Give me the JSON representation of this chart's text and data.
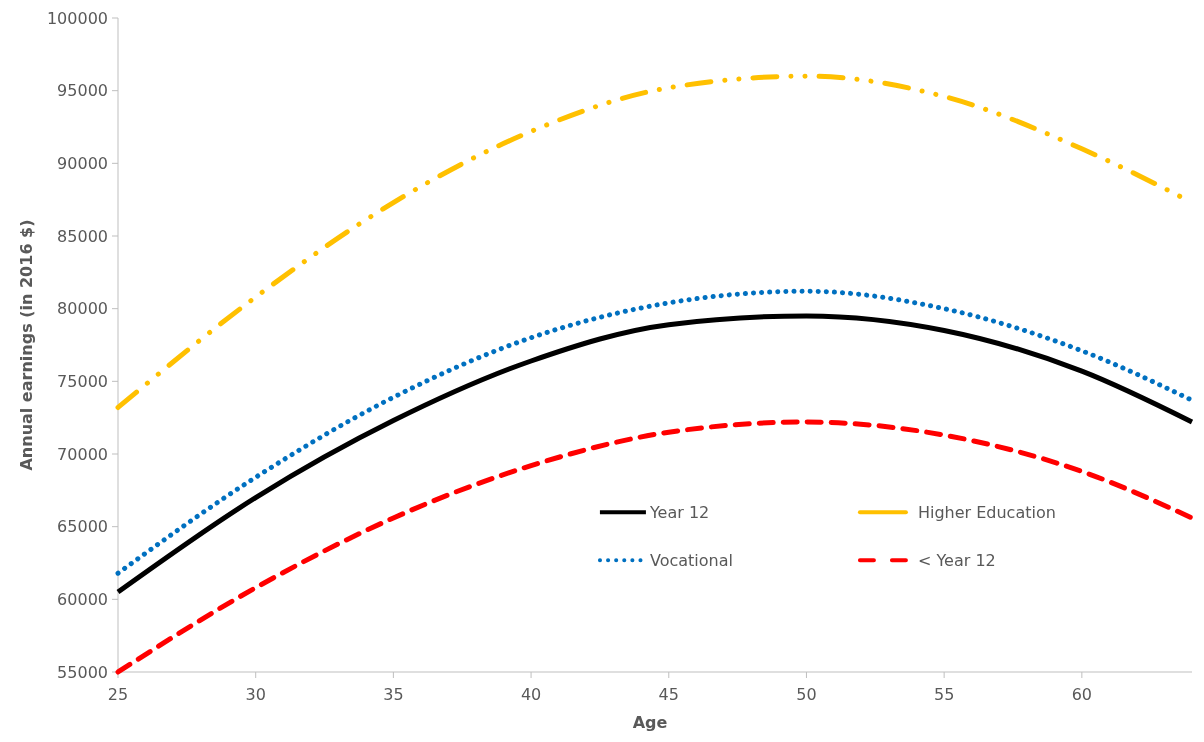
{
  "chart_data": {
    "type": "line",
    "xlabel": "Age",
    "ylabel": "Annual earnings (in 2016 $)",
    "x": [
      25,
      30,
      35,
      40,
      45,
      50,
      55,
      60,
      64
    ],
    "xlim": [
      25,
      64
    ],
    "xticks": [
      25,
      30,
      35,
      40,
      45,
      50,
      55,
      60
    ],
    "ylim": [
      55000,
      100000
    ],
    "yticks": [
      55000,
      60000,
      65000,
      70000,
      75000,
      80000,
      85000,
      90000,
      95000,
      100000
    ],
    "grid": false,
    "legend": "bottom right",
    "marker": "none",
    "series": [
      {
        "name": "Year 12",
        "color": "#000000",
        "line_style": "solid",
        "values": [
          60500,
          67000,
          72300,
          76400,
          78900,
          79500,
          78500,
          75700,
          72200
        ]
      },
      {
        "name": "Higher Education",
        "color": "#ffc000",
        "line_style": "dashdot",
        "values": [
          73200,
          80800,
          87300,
          92200,
          95200,
          96000,
          94600,
          91000,
          87300
        ]
      },
      {
        "name": "Vocational",
        "color": "#0070c0",
        "line_style": "dotted",
        "values": [
          61800,
          68400,
          73900,
          78000,
          80400,
          81200,
          80000,
          77100,
          73700
        ]
      },
      {
        "name": "< Year 12",
        "color": "#ff0000",
        "line_style": "dashed",
        "values": [
          55000,
          60800,
          65600,
          69200,
          71500,
          72200,
          71300,
          68800,
          65600
        ]
      }
    ]
  }
}
